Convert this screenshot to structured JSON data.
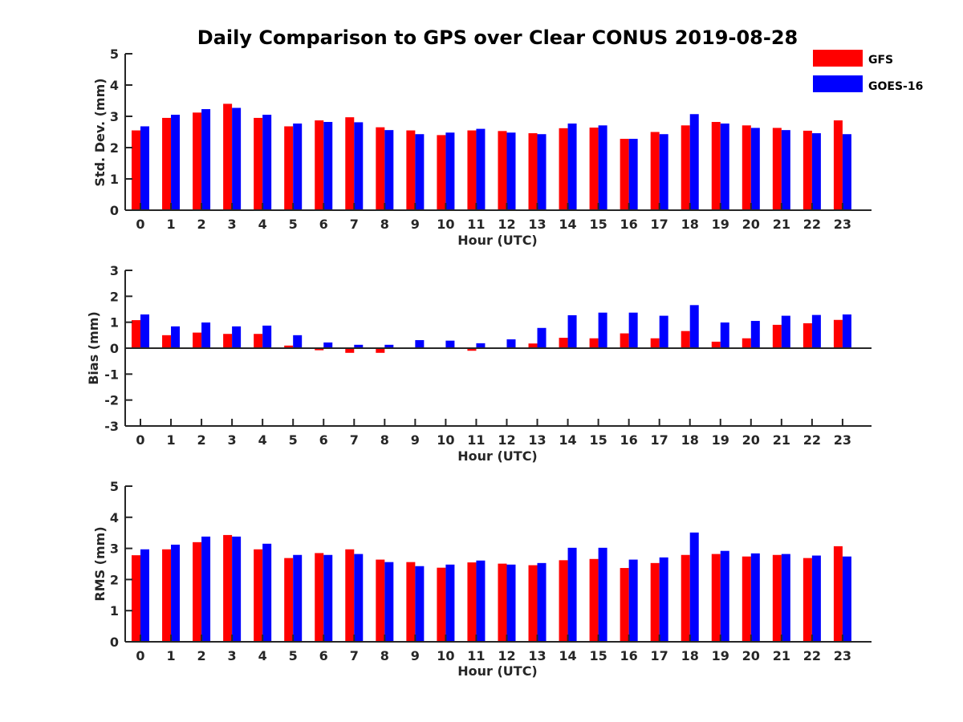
{
  "chart_data": {
    "title": "Daily Comparison to GPS over Clear CONUS 2019-08-28",
    "legend": {
      "placement": "top-right",
      "entries": [
        {
          "name": "GFS",
          "color": "#ff0000"
        },
        {
          "name": "GOES-16",
          "color": "#0000ff"
        }
      ]
    },
    "panels": [
      {
        "type": "bar",
        "ylabel": "Std. Dev. (mm)",
        "xlabel": "Hour (UTC)",
        "ylim": [
          0,
          5
        ],
        "yticks": [
          0,
          1,
          2,
          3,
          4,
          5
        ],
        "categories": [
          "0",
          "1",
          "2",
          "3",
          "4",
          "5",
          "6",
          "7",
          "8",
          "9",
          "10",
          "11",
          "12",
          "13",
          "14",
          "15",
          "16",
          "17",
          "18",
          "19",
          "20",
          "21",
          "22",
          "23"
        ],
        "series": [
          {
            "name": "GFS",
            "color": "#ff0000",
            "values": [
              2.55,
              2.95,
              3.12,
              3.4,
              2.95,
              2.68,
              2.87,
              2.97,
              2.65,
              2.55,
              2.4,
              2.55,
              2.53,
              2.46,
              2.62,
              2.64,
              2.28,
              2.5,
              2.71,
              2.82,
              2.71,
              2.63,
              2.54,
              2.87
            ]
          },
          {
            "name": "GOES-16",
            "color": "#0000ff",
            "values": [
              2.68,
              3.05,
              3.23,
              3.27,
              3.05,
              2.77,
              2.82,
              2.81,
              2.56,
              2.43,
              2.48,
              2.6,
              2.48,
              2.43,
              2.77,
              2.71,
              2.28,
              2.43,
              3.07,
              2.77,
              2.63,
              2.56,
              2.46,
              2.43
            ]
          }
        ]
      },
      {
        "type": "bar",
        "ylabel": "Bias (mm)",
        "xlabel": "Hour (UTC)",
        "ylim": [
          -3,
          3
        ],
        "yticks": [
          -3,
          -2,
          -1,
          0,
          1,
          2,
          3
        ],
        "zero_line": true,
        "categories": [
          "0",
          "1",
          "2",
          "3",
          "4",
          "5",
          "6",
          "7",
          "8",
          "9",
          "10",
          "11",
          "12",
          "13",
          "14",
          "15",
          "16",
          "17",
          "18",
          "19",
          "20",
          "21",
          "22",
          "23"
        ],
        "series": [
          {
            "name": "GFS",
            "color": "#ff0000",
            "values": [
              1.08,
              0.5,
              0.6,
              0.55,
              0.55,
              0.1,
              -0.08,
              -0.18,
              -0.18,
              0.0,
              0.0,
              -0.1,
              0.0,
              0.18,
              0.4,
              0.38,
              0.57,
              0.38,
              0.66,
              0.25,
              0.38,
              0.9,
              0.96,
              1.09
            ]
          },
          {
            "name": "GOES-16",
            "color": "#0000ff",
            "values": [
              1.3,
              0.84,
              0.99,
              0.84,
              0.87,
              0.5,
              0.22,
              0.13,
              0.13,
              0.31,
              0.29,
              0.19,
              0.34,
              0.78,
              1.27,
              1.37,
              1.37,
              1.25,
              1.66,
              0.99,
              1.05,
              1.25,
              1.28,
              1.3
            ]
          }
        ]
      },
      {
        "type": "bar",
        "ylabel": "RMS (mm)",
        "xlabel": "Hour (UTC)",
        "ylim": [
          0,
          5
        ],
        "yticks": [
          0,
          1,
          2,
          3,
          4,
          5
        ],
        "categories": [
          "0",
          "1",
          "2",
          "3",
          "4",
          "5",
          "6",
          "7",
          "8",
          "9",
          "10",
          "11",
          "12",
          "13",
          "14",
          "15",
          "16",
          "17",
          "18",
          "19",
          "20",
          "21",
          "22",
          "23"
        ],
        "series": [
          {
            "name": "GFS",
            "color": "#ff0000",
            "values": [
              2.78,
              2.97,
              3.2,
              3.43,
              2.97,
              2.69,
              2.85,
              2.97,
              2.64,
              2.56,
              2.38,
              2.55,
              2.51,
              2.46,
              2.62,
              2.66,
              2.37,
              2.53,
              2.79,
              2.82,
              2.74,
              2.79,
              2.69,
              3.07
            ]
          },
          {
            "name": "GOES-16",
            "color": "#0000ff",
            "values": [
              2.97,
              3.12,
              3.38,
              3.38,
              3.15,
              2.79,
              2.79,
              2.82,
              2.56,
              2.43,
              2.48,
              2.61,
              2.48,
              2.53,
              3.02,
              3.02,
              2.64,
              2.71,
              3.51,
              2.92,
              2.84,
              2.82,
              2.77,
              2.74
            ]
          }
        ]
      }
    ]
  }
}
